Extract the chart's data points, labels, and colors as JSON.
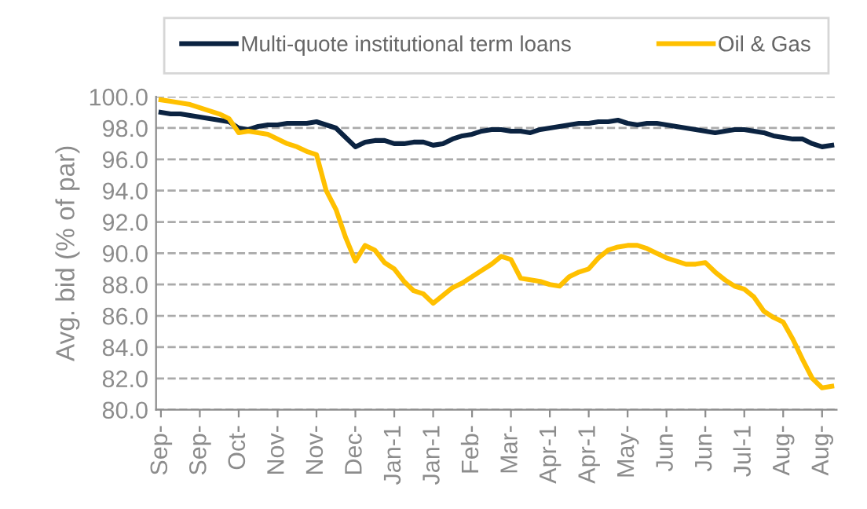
{
  "chart_data": {
    "type": "line",
    "ylabel": "Avg. bid (% of par)",
    "categories": [
      "Sep-",
      null,
      null,
      null,
      "Sep-",
      null,
      null,
      null,
      "Oct-",
      null,
      null,
      null,
      "Nov-",
      null,
      null,
      null,
      "Nov-",
      null,
      null,
      null,
      "Dec-",
      null,
      null,
      null,
      "Jan-1",
      null,
      null,
      null,
      "Jan-1",
      null,
      null,
      null,
      "Feb-",
      null,
      null,
      null,
      "Mar-",
      null,
      null,
      null,
      "Apr-1",
      null,
      null,
      null,
      "Apr-1",
      null,
      null,
      null,
      "May-",
      null,
      null,
      null,
      "Jun-",
      null,
      null,
      null,
      "Jun-",
      null,
      null,
      null,
      "Jul-1",
      null,
      null,
      null,
      "Aug-",
      null,
      null,
      null,
      "Aug-",
      null
    ],
    "series": [
      {
        "name": "Multi-quote institutional term loans",
        "color": "#0b2341",
        "values": [
          99.0,
          98.9,
          98.9,
          98.8,
          98.7,
          98.6,
          98.5,
          98.4,
          98.0,
          97.9,
          98.1,
          98.2,
          98.2,
          98.3,
          98.3,
          98.3,
          98.4,
          98.2,
          98.0,
          97.4,
          96.8,
          97.1,
          97.2,
          97.2,
          97.0,
          97.0,
          97.1,
          97.1,
          96.9,
          97.0,
          97.3,
          97.5,
          97.6,
          97.8,
          97.9,
          97.9,
          97.8,
          97.8,
          97.7,
          97.9,
          98.0,
          98.1,
          98.2,
          98.3,
          98.3,
          98.4,
          98.4,
          98.5,
          98.3,
          98.2,
          98.3,
          98.3,
          98.2,
          98.1,
          98.0,
          97.9,
          97.8,
          97.7,
          97.8,
          97.9,
          97.9,
          97.8,
          97.7,
          97.5,
          97.4,
          97.3,
          97.3,
          97.0,
          96.8,
          96.9
        ]
      },
      {
        "name": "Oil & Gas",
        "color": "#ffc000",
        "values": [
          99.8,
          99.7,
          99.6,
          99.5,
          99.3,
          99.1,
          98.9,
          98.6,
          97.7,
          97.8,
          97.7,
          97.6,
          97.3,
          97.0,
          96.8,
          96.5,
          96.3,
          94.0,
          92.8,
          91.0,
          89.5,
          90.5,
          90.2,
          89.4,
          89.0,
          88.2,
          87.6,
          87.4,
          86.8,
          87.3,
          87.8,
          88.1,
          88.5,
          88.9,
          89.3,
          89.8,
          89.6,
          88.4,
          88.3,
          88.2,
          88.0,
          87.9,
          88.5,
          88.8,
          89.0,
          89.7,
          90.2,
          90.4,
          90.5,
          90.5,
          90.3,
          90.0,
          89.7,
          89.5,
          89.3,
          89.3,
          89.4,
          88.8,
          88.3,
          87.9,
          87.7,
          87.2,
          86.3,
          85.9,
          85.6,
          84.5,
          83.2,
          82.0,
          81.4,
          81.5
        ]
      }
    ],
    "ylim": [
      80,
      100
    ],
    "yticks": [
      {
        "value": 80,
        "label": "80.0"
      },
      {
        "value": 82,
        "label": "82.0"
      },
      {
        "value": 84,
        "label": "84.0"
      },
      {
        "value": 86,
        "label": "86.0"
      },
      {
        "value": 88,
        "label": "88.0"
      },
      {
        "value": 90,
        "label": "90.0"
      },
      {
        "value": 92,
        "label": "92.0"
      },
      {
        "value": 94,
        "label": "94.0"
      },
      {
        "value": 96,
        "label": "96.0"
      },
      {
        "value": 98,
        "label": "98.0"
      },
      {
        "value": 100,
        "label": "100.0"
      }
    ],
    "grid": "y",
    "legend": "top",
    "line_style": "solid"
  }
}
